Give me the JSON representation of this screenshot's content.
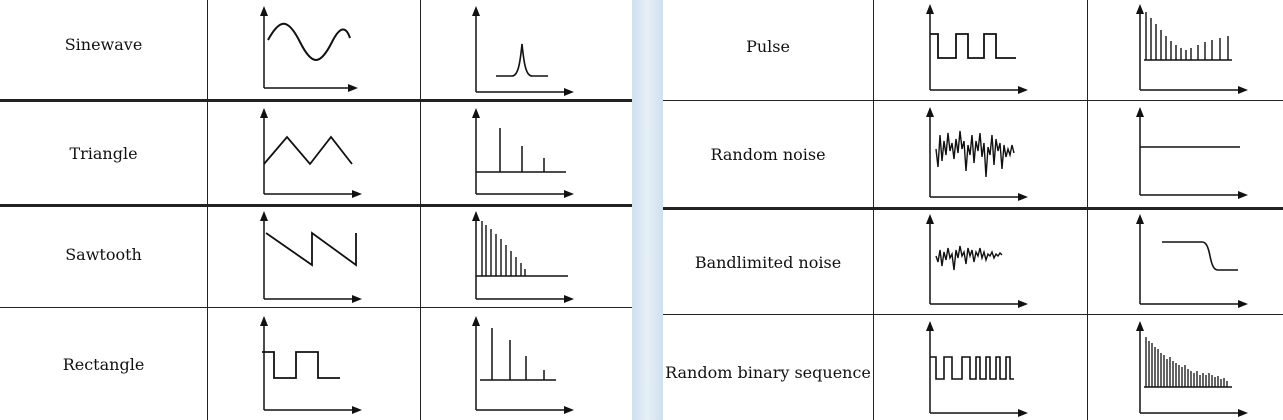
{
  "left_table": {
    "rows": [
      {
        "label": "Sinewave",
        "time_icon": "sine-wave-icon",
        "spectrum_icon": "single-peak-spectrum-icon"
      },
      {
        "label": "Triangle",
        "time_icon": "triangle-wave-icon",
        "spectrum_icon": "odd-harmonic-lines-icon"
      },
      {
        "label": "Sawtooth",
        "time_icon": "sawtooth-wave-icon",
        "spectrum_icon": "decaying-harmonic-lines-icon"
      },
      {
        "label": "Rectangle",
        "time_icon": "rectangle-wave-icon",
        "spectrum_icon": "odd-harmonic-lines-icon"
      }
    ]
  },
  "right_table": {
    "rows": [
      {
        "label": "Pulse",
        "time_icon": "pulse-train-icon",
        "spectrum_icon": "sinc-harmonic-lines-icon"
      },
      {
        "label": "Random noise",
        "time_icon": "random-noise-icon",
        "spectrum_icon": "flat-spectrum-icon"
      },
      {
        "label": "Bandlimited noise",
        "time_icon": "bandlimited-noise-icon",
        "spectrum_icon": "lowpass-spectrum-icon"
      },
      {
        "label": "Random binary sequence",
        "time_icon": "random-binary-sequence-icon",
        "spectrum_icon": "dense-decaying-lines-icon"
      }
    ]
  }
}
